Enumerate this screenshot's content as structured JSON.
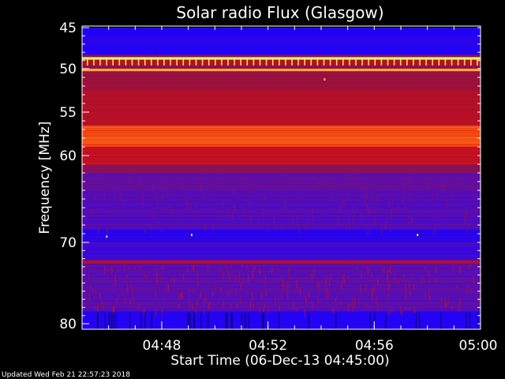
{
  "chart_data": {
    "type": "heatmap",
    "title": "Solar radio Flux (Glasgow)",
    "xlabel": "Start Time (06-Dec-13 04:45:00)",
    "ylabel": "Frequency [MHz]",
    "footer": "Updated Wed Feb 21 22:57:23 2018",
    "x_range_minutes": [
      0,
      15
    ],
    "x_ticks": [
      {
        "minute": 3,
        "label": "04:48"
      },
      {
        "minute": 7,
        "label": "04:52"
      },
      {
        "minute": 11,
        "label": "04:56"
      },
      {
        "minute": 15,
        "label": "05:00"
      }
    ],
    "y_range_mhz": [
      45,
      80
    ],
    "y_ticks": [
      {
        "mhz": 45,
        "label": "45"
      },
      {
        "mhz": 50,
        "label": "50"
      },
      {
        "mhz": 55,
        "label": "55"
      },
      {
        "mhz": 60,
        "label": "60"
      },
      {
        "mhz": 70,
        "label": "70"
      },
      {
        "mhz": 80,
        "label": "80"
      }
    ],
    "colormap": [
      "#1a00ff",
      "#5a0fb0",
      "#a01030",
      "#e81010",
      "#ff8a1a",
      "#ffff60"
    ],
    "frequency_bands": [
      {
        "from": 45.0,
        "to": 46.0,
        "level": 0.02
      },
      {
        "from": 46.0,
        "to": 47.3,
        "level": 0.05
      },
      {
        "from": 47.3,
        "to": 48.3,
        "level": 0.03
      },
      {
        "from": 48.3,
        "to": 48.6,
        "level": 0.3
      },
      {
        "from": 48.6,
        "to": 48.9,
        "level": 0.98
      },
      {
        "from": 48.9,
        "to": 49.6,
        "level": 0.45
      },
      {
        "from": 49.6,
        "to": 50.0,
        "level": 0.35
      },
      {
        "from": 50.0,
        "to": 50.3,
        "level": 0.85
      },
      {
        "from": 50.3,
        "to": 52.5,
        "level": 0.38
      },
      {
        "from": 52.5,
        "to": 56.5,
        "level": 0.45
      },
      {
        "from": 56.5,
        "to": 59.0,
        "level": 0.7
      },
      {
        "from": 59.0,
        "to": 61.0,
        "level": 0.5
      },
      {
        "from": 61.0,
        "to": 62.0,
        "level": 0.35
      },
      {
        "from": 62.0,
        "to": 64.0,
        "level": 0.22
      },
      {
        "from": 64.0,
        "to": 68.5,
        "level": 0.18
      },
      {
        "from": 68.5,
        "to": 70.0,
        "level": 0.04
      },
      {
        "from": 70.0,
        "to": 72.2,
        "level": 0.12
      },
      {
        "from": 72.2,
        "to": 72.6,
        "level": 0.45
      },
      {
        "from": 72.6,
        "to": 78.5,
        "level": 0.2
      },
      {
        "from": 78.5,
        "to": 80.0,
        "level": 0.03
      }
    ]
  }
}
